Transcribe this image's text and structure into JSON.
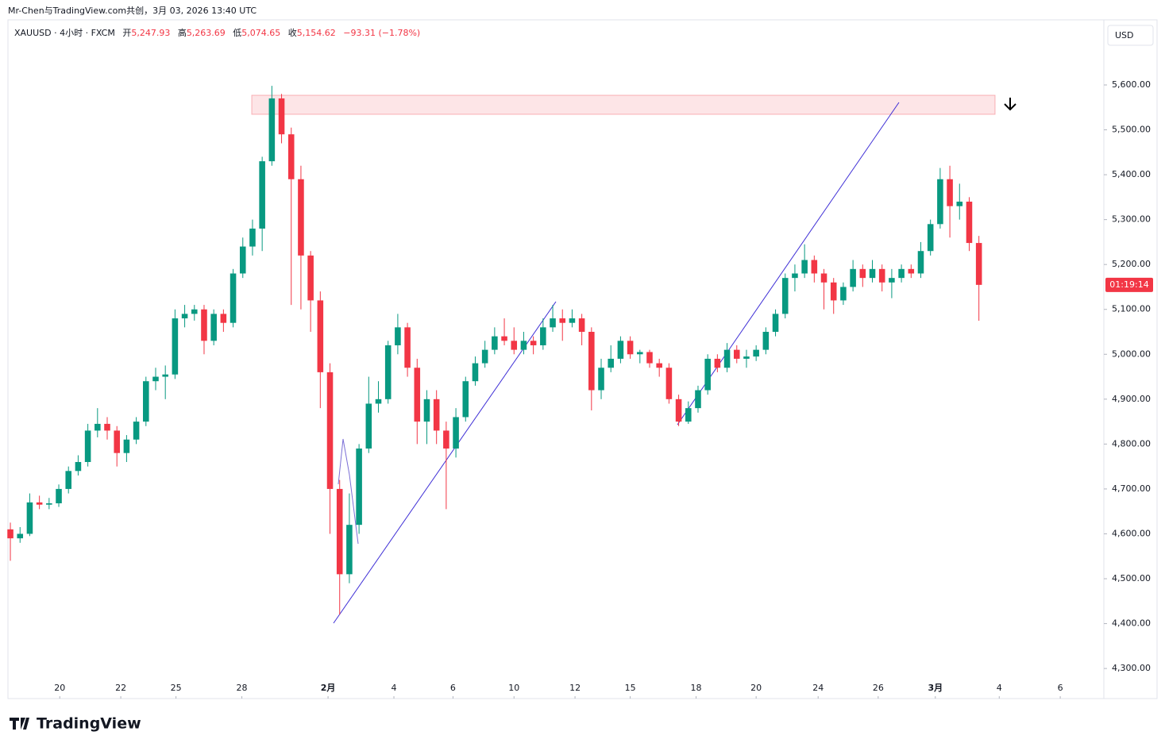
{
  "header": {
    "caption": "Mr-Chen与TradingView.com共创，3月 03, 2026 13:40 UTC",
    "symbol": "XAUUSD · 4小时 · FXCM",
    "open_label": "开",
    "open": "5,247.93",
    "high_label": "高",
    "high": "5,263.69",
    "low_label": "低",
    "low": "5,074.65",
    "close_label": "收",
    "close": "5,154.62",
    "change": "−93.31 (−1.78%)",
    "currency": "USD",
    "countdown": "01:19:14",
    "brand": "TradingView"
  },
  "chart_data": {
    "type": "candlestick",
    "up_color": "#089981",
    "down_color": "#f23645",
    "grid": false,
    "open": [
      4610,
      4590,
      4600,
      4670,
      4665,
      4668,
      4700,
      4740,
      4760,
      4830,
      4845,
      4830,
      4780,
      4810,
      4850,
      4940,
      4950,
      4955,
      5080,
      5090,
      5100,
      5030,
      5090,
      5070,
      5180,
      5240,
      5280,
      5430,
      5570,
      5490,
      5390,
      5220,
      5120,
      4960,
      4700,
      4510,
      4620,
      4790,
      4890,
      4900,
      5020,
      5060,
      4970,
      4850,
      4900,
      4830,
      4790,
      4860,
      4940,
      4980,
      5010,
      5040,
      5030,
      5010,
      5030,
      5020,
      5060,
      5080,
      5070,
      5080,
      5050,
      4920,
      4970,
      4990,
      5030,
      5000,
      5005,
      4980,
      4970,
      4900,
      4850,
      4880,
      4920,
      4990,
      4970,
      5010,
      4990,
      4995,
      5010,
      5050,
      5090,
      5170,
      5180,
      5210,
      5180,
      5160,
      5120,
      5150,
      5190,
      5170,
      5190,
      5160,
      5170,
      5190,
      5180,
      5230,
      5290,
      5390,
      5330,
      5340,
      5247.93
    ],
    "high": [
      4625,
      4615,
      4690,
      4685,
      4680,
      4710,
      4750,
      4775,
      4845,
      4880,
      4860,
      4840,
      4820,
      4860,
      4950,
      4970,
      4975,
      5100,
      5110,
      5110,
      5110,
      5100,
      5100,
      5190,
      5260,
      5300,
      5440,
      5598,
      5580,
      5505,
      5420,
      5230,
      5140,
      4980,
      4720,
      4690,
      4800,
      4950,
      4940,
      5030,
      5090,
      5070,
      4990,
      4920,
      4920,
      4850,
      4880,
      4950,
      4995,
      5030,
      5060,
      5080,
      5060,
      5050,
      5040,
      5080,
      5110,
      5100,
      5100,
      5090,
      5060,
      4990,
      5020,
      5040,
      5040,
      5010,
      5010,
      4990,
      4980,
      4910,
      4895,
      4930,
      5000,
      5000,
      5025,
      5020,
      5010,
      5020,
      5060,
      5100,
      5180,
      5200,
      5245,
      5220,
      5190,
      5170,
      5160,
      5210,
      5200,
      5210,
      5200,
      5190,
      5200,
      5200,
      5250,
      5300,
      5415,
      5420,
      5380,
      5350,
      5263.69
    ],
    "low": [
      4540,
      4580,
      4595,
      4655,
      4655,
      4660,
      4690,
      4730,
      4750,
      4815,
      4810,
      4750,
      4760,
      4800,
      4840,
      4920,
      4900,
      4945,
      5060,
      5075,
      5000,
      5020,
      5050,
      5060,
      5170,
      5220,
      5230,
      5420,
      5470,
      5110,
      5100,
      5050,
      4880,
      4600,
      4420,
      4490,
      4600,
      4780,
      4870,
      4890,
      5000,
      4950,
      4800,
      4800,
      4800,
      4655,
      4770,
      4850,
      4930,
      4970,
      5000,
      5020,
      5000,
      5000,
      5000,
      5010,
      5050,
      5030,
      5060,
      5020,
      4875,
      4900,
      4960,
      4980,
      4990,
      4980,
      4970,
      4950,
      4890,
      4840,
      4845,
      4870,
      4910,
      4960,
      4960,
      4980,
      4970,
      4985,
      5000,
      5040,
      5080,
      5140,
      5170,
      5160,
      5100,
      5090,
      5110,
      5140,
      5150,
      5160,
      5140,
      5125,
      5160,
      5170,
      5170,
      5220,
      5280,
      5260,
      5300,
      5230,
      5074.65
    ],
    "close": [
      4590,
      4600,
      4670,
      4665,
      4668,
      4700,
      4740,
      4760,
      4830,
      4845,
      4830,
      4780,
      4810,
      4850,
      4940,
      4950,
      4955,
      5080,
      5090,
      5100,
      5030,
      5090,
      5070,
      5180,
      5240,
      5280,
      5430,
      5570,
      5490,
      5390,
      5220,
      5120,
      4960,
      4700,
      4510,
      4620,
      4790,
      4890,
      4900,
      5020,
      5060,
      4970,
      4850,
      4900,
      4830,
      4790,
      4860,
      4940,
      4980,
      5010,
      5040,
      5030,
      5010,
      5030,
      5020,
      5060,
      5080,
      5070,
      5080,
      5050,
      4920,
      4970,
      4990,
      5030,
      5000,
      5005,
      4980,
      4970,
      4900,
      4850,
      4880,
      4920,
      4990,
      4970,
      5010,
      4990,
      4995,
      5010,
      5050,
      5090,
      5170,
      5180,
      5210,
      5180,
      5160,
      5120,
      5150,
      5190,
      5170,
      5190,
      5160,
      5170,
      5190,
      5180,
      5230,
      5290,
      5390,
      5330,
      5340,
      5247.93,
      5154.62
    ],
    "xlim": [
      -0.25,
      112.9
    ],
    "xticks": [
      {
        "value": 5.1,
        "label": "20"
      },
      {
        "value": 11.4,
        "label": "22"
      },
      {
        "value": 17.1,
        "label": "25"
      },
      {
        "value": 23.9,
        "label": "28"
      },
      {
        "value": 32.8,
        "label": "2月"
      },
      {
        "value": 39.6,
        "label": "4"
      },
      {
        "value": 45.7,
        "label": "6"
      },
      {
        "value": 52.0,
        "label": "10"
      },
      {
        "value": 58.3,
        "label": "12"
      },
      {
        "value": 64.0,
        "label": "15"
      },
      {
        "value": 70.8,
        "label": "18"
      },
      {
        "value": 77.0,
        "label": "20"
      },
      {
        "value": 83.4,
        "label": "24"
      },
      {
        "value": 89.6,
        "label": "26"
      },
      {
        "value": 95.5,
        "label": "3月"
      },
      {
        "value": 102.1,
        "label": "4"
      },
      {
        "value": 108.4,
        "label": "6"
      }
    ],
    "ylim": [
      4233,
      5745
    ],
    "yticks": [
      {
        "value": 4300,
        "label": "4,300.00"
      },
      {
        "value": 4400,
        "label": "4,400.00"
      },
      {
        "value": 4500,
        "label": "4,500.00"
      },
      {
        "value": 4600,
        "label": "4,600.00"
      },
      {
        "value": 4700,
        "label": "4,700.00"
      },
      {
        "value": 4800,
        "label": "4,800.00"
      },
      {
        "value": 4900,
        "label": "4,900.00"
      },
      {
        "value": 5000,
        "label": "5,000.00"
      },
      {
        "value": 5100,
        "label": "5,100.00"
      },
      {
        "value": 5200,
        "label": "5,200.00"
      },
      {
        "value": 5300,
        "label": "5,300.00"
      },
      {
        "value": 5400,
        "label": "5,400.00"
      },
      {
        "value": 5500,
        "label": "5,500.00"
      },
      {
        "value": 5600,
        "label": "5,600.00"
      }
    ]
  }
}
